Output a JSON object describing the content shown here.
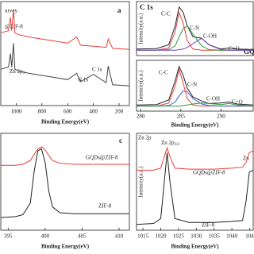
{
  "chart_data": [
    {
      "type": "line",
      "label": "a",
      "xlabel": "Binding Energy(eV)",
      "xlim": [
        1120,
        120
      ],
      "ylim": [
        0,
        100
      ],
      "xticks": [
        1000,
        800,
        600,
        400,
        200
      ],
      "x": [
        1120,
        1060,
        1045,
        1035,
        1022,
        1010,
        980,
        900,
        800,
        700,
        600,
        530,
        500,
        400,
        300,
        285,
        250,
        120
      ],
      "series": [
        {
          "color": "#e8403a",
          "values": [
            70,
            72,
            85,
            72,
            92,
            70,
            68,
            66,
            64,
            62,
            60,
            66,
            58,
            57,
            56,
            64,
            55,
            54
          ]
        },
        {
          "color": "#444444",
          "values": [
            35,
            37,
            50,
            37,
            60,
            35,
            33,
            31,
            29,
            27,
            25,
            31,
            23,
            30,
            22,
            38,
            20,
            19
          ]
        }
      ],
      "annotations": [
        {
          "text": "urvey"
        },
        {
          "text": "@ZIF-8"
        },
        {
          "text": "Zn 2p",
          "sub": "3"
        },
        {
          "text": "N 1s"
        },
        {
          "text": "C 1s"
        }
      ]
    },
    {
      "type": "line",
      "ylabel": "Intensity(a.u.)",
      "xlim": [
        279.5,
        294
      ],
      "ylim": [
        0,
        100
      ],
      "x": [
        279.5,
        282,
        283.5,
        284.3,
        284.8,
        285.3,
        285.8,
        286.5,
        287.6,
        288.5,
        290,
        291,
        292,
        294
      ],
      "series": [
        {
          "color": "#222222",
          "values": [
            12,
            13,
            20,
            55,
            90,
            80,
            55,
            35,
            32,
            20,
            12,
            14,
            12,
            11
          ]
        },
        {
          "color": "#e8403a",
          "values": [
            10,
            10,
            14,
            45,
            80,
            60,
            28,
            12,
            10,
            10,
            10,
            10,
            10,
            10
          ]
        },
        {
          "color": "#2a9d3a",
          "values": [
            10,
            10,
            11,
            18,
            35,
            50,
            55,
            40,
            18,
            11,
            10,
            10,
            10,
            10
          ]
        },
        {
          "color": "#7040c0",
          "values": [
            10,
            10,
            10,
            10,
            11,
            12,
            15,
            22,
            32,
            20,
            11,
            10,
            10,
            10
          ]
        }
      ],
      "annotations": [
        {
          "text": "C 1s"
        },
        {
          "text": "C-C"
        },
        {
          "text": "C-N"
        },
        {
          "text": "C-OH"
        },
        {
          "text": "C=O"
        },
        {
          "text": "GQ"
        }
      ]
    },
    {
      "type": "line",
      "ylabel": "Intensity(a.u.)",
      "xlabel": "Binding Energy(eV)",
      "xlim": [
        279.5,
        294
      ],
      "ylim": [
        0,
        100
      ],
      "xticks": [
        280,
        285,
        290
      ],
      "x": [
        279.5,
        282,
        283.5,
        284.3,
        284.8,
        285.3,
        285.8,
        286.5,
        287.6,
        288.5,
        290,
        291,
        292,
        294
      ],
      "series": [
        {
          "color": "#222222",
          "values": [
            12,
            13,
            22,
            60,
            88,
            70,
            45,
            28,
            20,
            15,
            16,
            18,
            14,
            12
          ]
        },
        {
          "color": "#e8403a",
          "values": [
            10,
            10,
            16,
            50,
            82,
            55,
            25,
            12,
            10,
            10,
            10,
            10,
            10,
            10
          ]
        },
        {
          "color": "#3060d0",
          "values": [
            10,
            10,
            11,
            18,
            30,
            40,
            38,
            25,
            14,
            11,
            10,
            10,
            10,
            10
          ]
        },
        {
          "color": "#2a9d3a",
          "values": [
            10,
            10,
            10,
            10,
            10,
            11,
            12,
            14,
            16,
            15,
            13,
            15,
            12,
            10
          ]
        }
      ],
      "annotations": [
        {
          "text": "C-C"
        },
        {
          "text": "C-N"
        },
        {
          "text": "C-OH"
        },
        {
          "text": "C=O"
        }
      ]
    },
    {
      "type": "line",
      "label": "c",
      "xlabel": "Binding Energy(eV)",
      "xlim": [
        394,
        411.4
      ],
      "ylim": [
        0,
        100
      ],
      "xticks": [
        395,
        400,
        405,
        410
      ],
      "x": [
        394,
        396,
        397,
        398,
        398.5,
        399,
        399.5,
        400,
        400.5,
        401,
        402,
        404,
        406,
        411.4
      ],
      "series": [
        {
          "color": "#e8403a",
          "values": [
            67,
            67,
            68,
            72,
            78,
            84,
            86,
            83,
            77,
            72,
            69,
            68,
            68,
            68
          ]
        },
        {
          "color": "#222222",
          "values": [
            13,
            14,
            16,
            28,
            60,
            82,
            84,
            70,
            40,
            24,
            18,
            17,
            17,
            17
          ]
        }
      ],
      "annotations": [
        {
          "text": "GQDs@ZIF-8"
        },
        {
          "text": "ZIF-8"
        }
      ]
    },
    {
      "type": "line",
      "ylabel": "Intensity(a.u.)",
      "xlabel": "Binding Energy(eV)",
      "xlim": [
        1013.2,
        1046
      ],
      "ylim": [
        0,
        100
      ],
      "xticks": [
        1015,
        1020,
        1025,
        1030,
        1035,
        1040,
        {
          "value": 1045,
          "label": "104"
        }
      ],
      "x": [
        1013.2,
        1018,
        1020,
        1021,
        1021.8,
        1022.6,
        1024,
        1028,
        1035,
        1040,
        1043,
        1044,
        1044.9,
        1046
      ],
      "series": [
        {
          "color": "#e8403a",
          "values": [
            62,
            62,
            64,
            76,
            85,
            76,
            64,
            63,
            63,
            64,
            65,
            70,
            80,
            82
          ]
        },
        {
          "color": "#222222",
          "values": [
            6,
            7,
            12,
            50,
            80,
            50,
            12,
            8,
            8,
            9,
            10,
            30,
            60,
            62
          ]
        }
      ],
      "annotations": [
        {
          "text": "Zn 2p"
        },
        {
          "text": "Zn 2p",
          "sub": "3/2"
        },
        {
          "text": "GQDs@ZIF-8"
        },
        {
          "text": "ZIF-8"
        },
        {
          "text": "Zn"
        }
      ]
    }
  ]
}
